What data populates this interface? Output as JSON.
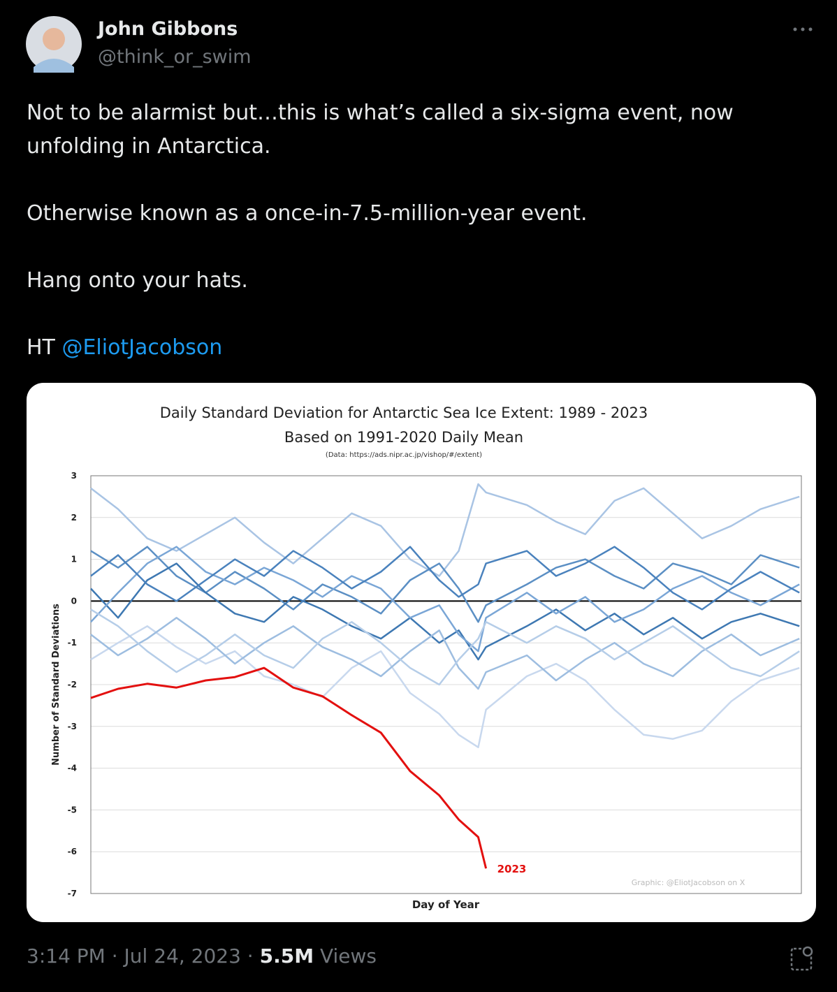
{
  "author": {
    "name": "John Gibbons",
    "handle": "@think_or_swim"
  },
  "tweet": {
    "paragraphs": [
      "Not to be alarmist but…this is what’s called a six-sigma event, now unfolding in Antarctica.",
      "Otherwise known as a once-in-7.5-million-year event.",
      "Hang onto your hats."
    ],
    "ht": "HT",
    "mention": "@EliotJacobson"
  },
  "footer": {
    "timestamp": "3:14 PM · Jul 24, 2023 ·",
    "views": "5.5M",
    "views_label": "Views"
  },
  "chart_data": {
    "type": "line",
    "title": "Daily Standard Deviation for Antarctic Sea Ice Extent: 1989 - 2023",
    "subtitle": "Based on 1991-2020 Daily Mean",
    "source_note": "(Data: https://ads.nipr.ac.jp/vishop/#/extent)",
    "credit": "Graphic: @EliotJacobson on X",
    "x_label": "Day of Year",
    "y_label": "Number of Standard Deviations",
    "xlim": [
      1,
      366
    ],
    "ylim": [
      -7,
      3
    ],
    "yticks": [
      -7,
      -6,
      -5,
      -4,
      -3,
      -2,
      -1,
      0,
      1,
      2,
      3
    ],
    "grid": true,
    "zero_line_color": "#000000",
    "x": [
      1,
      15,
      30,
      45,
      60,
      75,
      90,
      105,
      120,
      135,
      150,
      165,
      180,
      190,
      200,
      204,
      225,
      240,
      255,
      270,
      285,
      300,
      315,
      330,
      345,
      365
    ],
    "series": [
      {
        "color": "#a9c4e4",
        "values": [
          2.7,
          2.2,
          1.5,
          1.2,
          1.6,
          2.0,
          1.4,
          0.9,
          1.5,
          2.1,
          1.8,
          1.0,
          0.6,
          1.2,
          2.8,
          2.6,
          2.3,
          1.9,
          1.6,
          2.4,
          2.7,
          2.1,
          1.5,
          1.8,
          2.2,
          2.5
        ]
      },
      {
        "color": "#5b8fc4",
        "values": [
          1.2,
          0.8,
          1.3,
          0.6,
          0.2,
          0.7,
          0.3,
          -0.2,
          0.4,
          0.1,
          -0.3,
          0.5,
          0.9,
          0.3,
          -0.5,
          -0.1,
          0.4,
          0.8,
          1.0,
          0.6,
          0.3,
          0.9,
          0.7,
          0.4,
          1.1,
          0.8
        ]
      },
      {
        "color": "#3e78b2",
        "values": [
          0.3,
          -0.4,
          0.5,
          0.9,
          0.2,
          -0.3,
          -0.5,
          0.1,
          -0.2,
          -0.6,
          -0.9,
          -0.4,
          -1.0,
          -0.7,
          -1.4,
          -1.1,
          -0.6,
          -0.2,
          -0.7,
          -0.3,
          -0.8,
          -0.4,
          -0.9,
          -0.5,
          -0.3,
          -0.6
        ]
      },
      {
        "color": "#c8d8ee",
        "values": [
          -1.4,
          -1.0,
          -0.6,
          -1.1,
          -1.5,
          -1.2,
          -1.8,
          -2.0,
          -2.3,
          -1.6,
          -1.2,
          -2.2,
          -2.7,
          -3.2,
          -3.5,
          -2.6,
          -1.8,
          -1.5,
          -1.9,
          -2.6,
          -3.2,
          -3.3,
          -3.1,
          -2.4,
          -1.9,
          -1.6
        ]
      },
      {
        "color": "#7aa6d6",
        "values": [
          -0.5,
          0.2,
          0.9,
          1.3,
          0.7,
          0.4,
          0.8,
          0.5,
          0.1,
          0.6,
          0.3,
          -0.4,
          -0.1,
          -0.8,
          -1.2,
          -0.4,
          0.2,
          -0.3,
          0.1,
          -0.5,
          -0.2,
          0.3,
          0.6,
          0.2,
          -0.1,
          0.4
        ]
      },
      {
        "color": "#9dbde0",
        "values": [
          -0.8,
          -1.3,
          -0.9,
          -0.4,
          -0.9,
          -1.5,
          -1.0,
          -0.6,
          -1.1,
          -1.4,
          -1.8,
          -1.2,
          -0.7,
          -1.6,
          -2.1,
          -1.7,
          -1.3,
          -1.9,
          -1.4,
          -1.0,
          -1.5,
          -1.8,
          -1.2,
          -0.8,
          -1.3,
          -0.9
        ]
      },
      {
        "color": "#4a82bd",
        "values": [
          0.6,
          1.1,
          0.4,
          0.0,
          0.5,
          1.0,
          0.6,
          1.2,
          0.8,
          0.3,
          0.7,
          1.3,
          0.5,
          0.1,
          0.4,
          0.9,
          1.2,
          0.6,
          0.9,
          1.3,
          0.8,
          0.2,
          -0.2,
          0.3,
          0.7,
          0.2
        ]
      },
      {
        "color": "#b5cde8",
        "values": [
          -0.2,
          -0.6,
          -1.2,
          -1.7,
          -1.3,
          -0.8,
          -1.3,
          -1.6,
          -0.9,
          -0.5,
          -1.0,
          -1.6,
          -2.0,
          -1.4,
          -0.9,
          -0.5,
          -1.0,
          -0.6,
          -0.9,
          -1.4,
          -1.0,
          -0.6,
          -1.1,
          -1.6,
          -1.8,
          -1.2
        ]
      },
      {
        "name": "2023",
        "color": "#e3100f",
        "values": [
          -2.32,
          -2.1,
          -1.98,
          -2.07,
          -1.9,
          -1.82,
          -1.6,
          -2.07,
          -2.28,
          -2.73,
          -3.15,
          -4.07,
          -4.65,
          -5.23,
          -5.65,
          -6.4,
          null,
          null,
          null,
          null,
          null,
          null,
          null,
          null,
          null,
          null
        ]
      }
    ]
  }
}
